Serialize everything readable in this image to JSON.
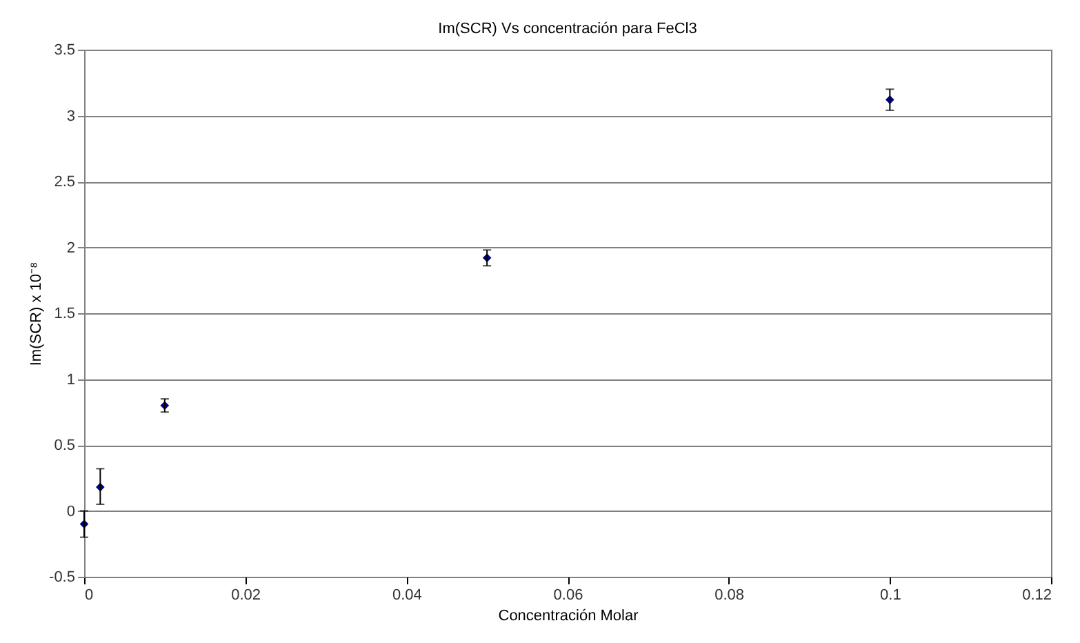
{
  "chart_data": {
    "type": "scatter",
    "title": "Im(SCR) Vs concentración para FeCl3",
    "xlabel": "Concentración Molar",
    "ylabel": "Im(SCR) x 10⁻⁸",
    "x": [
      0,
      0.002,
      0.01,
      0.05,
      0.1
    ],
    "series": [
      {
        "color": "#000080",
        "values": [
          -0.1,
          0.18,
          0.8,
          1.92,
          3.12
        ],
        "errors": [
          0.1,
          [
            0.05,
            0.32
          ],
          0.05,
          0.06,
          0.08
        ]
      }
    ],
    "xlim": [
      0,
      0.12
    ],
    "xticks": [
      0,
      0.02,
      0.04,
      0.06,
      0.08,
      0.1,
      0.12
    ],
    "ylim": [
      -0.5,
      3.5
    ],
    "yticks": [
      -0.5,
      0,
      0.5,
      1,
      1.5,
      2,
      2.5,
      3,
      3.5
    ],
    "grid": "y",
    "marker": "diamond"
  }
}
